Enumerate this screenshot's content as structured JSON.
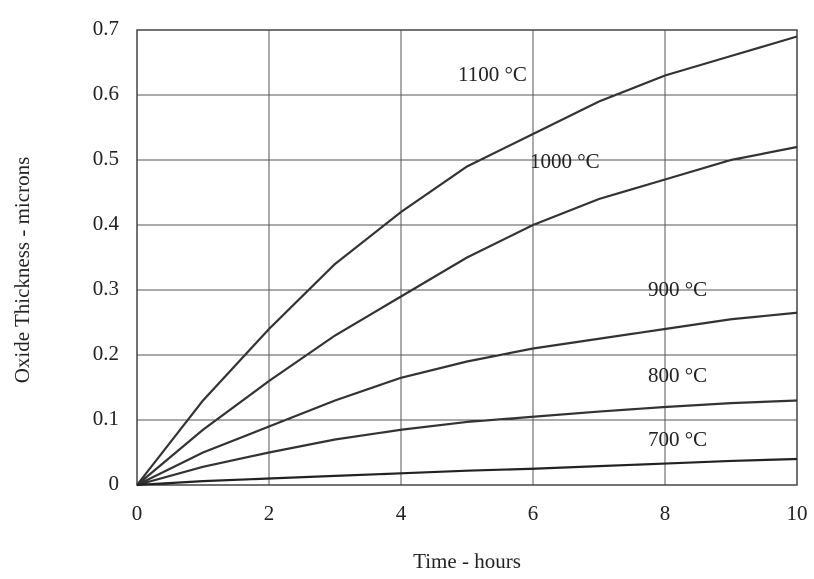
{
  "chart_data": {
    "type": "line",
    "x_label": "Time - hours",
    "y_label": "Oxide Thickness - microns",
    "x": [
      0,
      1,
      2,
      3,
      4,
      5,
      6,
      7,
      8,
      9,
      10
    ],
    "series": [
      {
        "name": "1100 °C",
        "color": "#333333",
        "values": [
          0,
          0.13,
          0.24,
          0.34,
          0.42,
          0.49,
          0.54,
          0.59,
          0.63,
          0.66,
          0.69
        ]
      },
      {
        "name": "1000 °C",
        "color": "#333333",
        "values": [
          0,
          0.085,
          0.16,
          0.23,
          0.29,
          0.35,
          0.4,
          0.44,
          0.47,
          0.5,
          0.52
        ]
      },
      {
        "name": "900 °C",
        "color": "#333333",
        "values": [
          0,
          0.05,
          0.09,
          0.13,
          0.165,
          0.19,
          0.21,
          0.225,
          0.24,
          0.255,
          0.265
        ]
      },
      {
        "name": "800 °C",
        "color": "#333333",
        "values": [
          0,
          0.028,
          0.05,
          0.07,
          0.085,
          0.097,
          0.105,
          0.113,
          0.12,
          0.126,
          0.13
        ]
      },
      {
        "name": "700 °C",
        "color": "#222222",
        "values": [
          0,
          0.006,
          0.01,
          0.014,
          0.018,
          0.022,
          0.025,
          0.029,
          0.033,
          0.037,
          0.04
        ]
      }
    ],
    "xlim": [
      0,
      10
    ],
    "xticks": [
      0,
      2,
      4,
      6,
      8,
      10
    ],
    "ylim": [
      0,
      0.7
    ],
    "yticks": [
      0,
      0.1,
      0.2,
      0.3,
      0.4,
      0.5,
      0.6,
      0.7
    ],
    "grid": true
  }
}
